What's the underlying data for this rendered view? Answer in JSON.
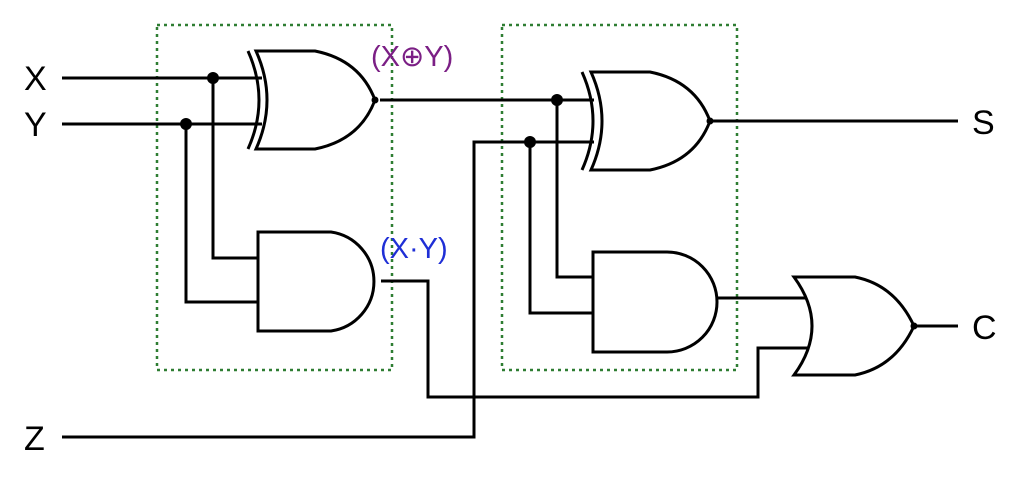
{
  "labels": {
    "input_x": "X",
    "input_y": "Y",
    "input_z": "Z",
    "output_s": "S",
    "output_c": "C",
    "xor_expr": "(X⊕Y)",
    "and_expr": "(X·Y)"
  },
  "colors": {
    "xor_expr": "#7b1f85",
    "and_expr": "#1f2fd6",
    "half_adder_box": "#2e7d32",
    "wire": "#000000"
  }
}
